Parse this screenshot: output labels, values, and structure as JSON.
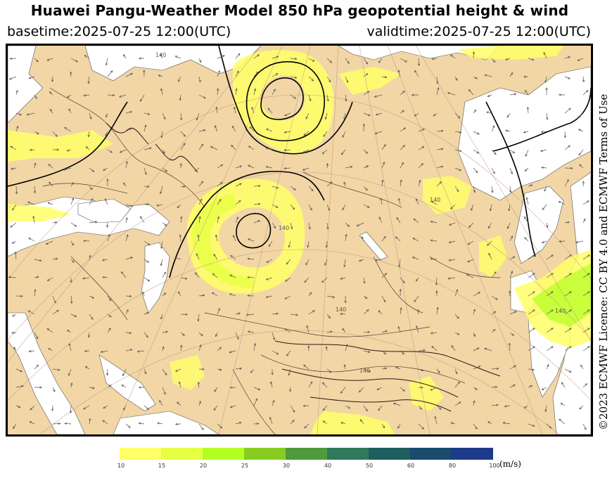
{
  "header": {
    "title": "Huawei Pangu-Weather Model 850 hPa geopotential height & wind",
    "basetime": "basetime:2025-07-25 12:00(UTC)",
    "validtime": "validtime:2025-07-25 12:00(UTC)"
  },
  "license": "©2023 ECMWF Licence: CC BY 4.0 and ECMWF Terms of Use",
  "map": {
    "contour_labels": [
      "140",
      "140",
      "140",
      "140",
      "140",
      "140"
    ],
    "land_color": "#f2d6a6",
    "sea_color": "#ffffff"
  },
  "colorbar": {
    "unit": "(m/s)",
    "labels": [
      "10",
      "15",
      "20",
      "25",
      "30",
      "40",
      "50",
      "60",
      "80",
      "100"
    ],
    "colors": [
      "#ffff66",
      "#e6ff44",
      "#b4ff22",
      "#88cc22",
      "#4f9a3a",
      "#2e7a5a",
      "#1e5e5e",
      "#1a4a6e",
      "#1e3a8a",
      "#2a36b4"
    ]
  }
}
